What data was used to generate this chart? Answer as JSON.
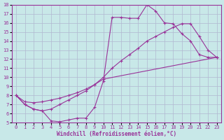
{
  "xlabel": "Windchill (Refroidissement éolien,°C)",
  "xlim": [
    -0.5,
    23.5
  ],
  "ylim": [
    5,
    18
  ],
  "xticks": [
    0,
    1,
    2,
    3,
    4,
    5,
    6,
    7,
    8,
    9,
    10,
    11,
    12,
    13,
    14,
    15,
    16,
    17,
    18,
    19,
    20,
    21,
    22,
    23
  ],
  "yticks": [
    5,
    6,
    7,
    8,
    9,
    10,
    11,
    12,
    13,
    14,
    15,
    16,
    17,
    18
  ],
  "bg_color": "#c8e8e8",
  "grid_color": "#b0b8d0",
  "line_color": "#993399",
  "line1_x": [
    0,
    1,
    2,
    3,
    4,
    5,
    6,
    7,
    8,
    9,
    10,
    11,
    12,
    13,
    14,
    15,
    16,
    17,
    18,
    19,
    20,
    21,
    22,
    23
  ],
  "line1_y": [
    8.0,
    7.0,
    6.5,
    6.3,
    5.2,
    5.1,
    5.3,
    5.5,
    5.5,
    6.7,
    9.6,
    16.6,
    16.6,
    16.5,
    16.5,
    18.0,
    17.3,
    16.0,
    15.9,
    14.8,
    14.0,
    12.5,
    12.2,
    12.2
  ],
  "line2_x": [
    0,
    1,
    2,
    3,
    4,
    5,
    6,
    7,
    8,
    9,
    10,
    23
  ],
  "line2_y": [
    8.0,
    7.3,
    7.2,
    7.3,
    7.5,
    7.7,
    8.0,
    8.3,
    8.7,
    9.2,
    9.8,
    12.2
  ],
  "line3_x": [
    0,
    1,
    2,
    3,
    4,
    5,
    6,
    7,
    8,
    9,
    10,
    11,
    12,
    13,
    14,
    15,
    16,
    17,
    18,
    19,
    20,
    21,
    22,
    23
  ],
  "line3_y": [
    8.0,
    7.0,
    6.5,
    6.3,
    6.5,
    7.0,
    7.5,
    8.0,
    8.5,
    9.2,
    10.0,
    11.0,
    11.8,
    12.5,
    13.2,
    14.0,
    14.5,
    15.0,
    15.5,
    15.9,
    15.9,
    14.5,
    13.0,
    12.2
  ]
}
